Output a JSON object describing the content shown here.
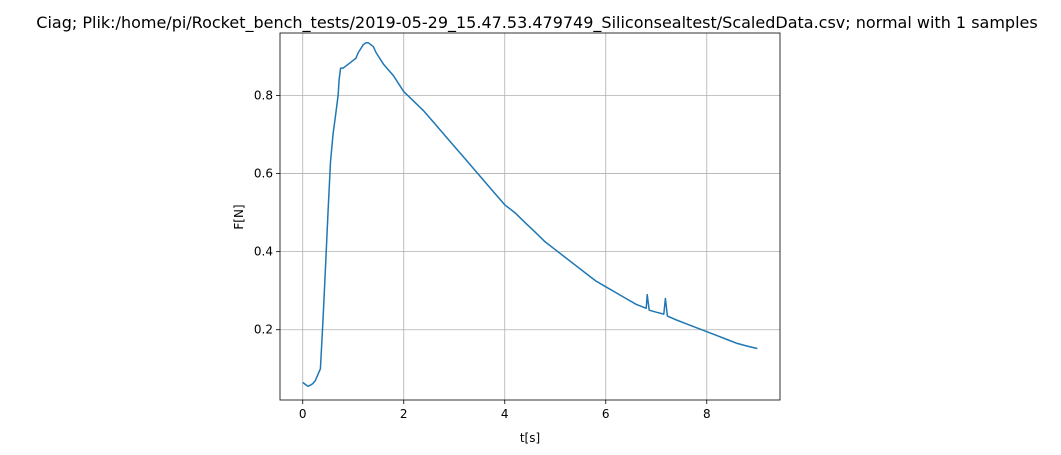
{
  "chart_data": {
    "type": "line",
    "title": "Ciag; Plik:/home/pi/Rocket_bench_tests/2019-05-29_15.47.53.479749_Siliconsealtest/ScaledData.csv; normal with 1 samples",
    "xlabel": "t[s]",
    "ylabel": "F[N]",
    "xlim": [
      -0.45,
      9.45
    ],
    "ylim": [
      0.02,
      0.96
    ],
    "x_ticks": [
      0,
      2,
      4,
      6,
      8
    ],
    "y_ticks": [
      0.2,
      0.4,
      0.6,
      0.8
    ],
    "x_tick_labels": [
      "0",
      "2",
      "4",
      "6",
      "8"
    ],
    "y_tick_labels": [
      "0.2",
      "0.4",
      "0.6",
      "0.8"
    ],
    "grid": true,
    "line_color": "#1f77b4",
    "series": [
      {
        "x": [
          0,
          0.05,
          0.1,
          0.15,
          0.2,
          0.25,
          0.3,
          0.35,
          0.4,
          0.45,
          0.5,
          0.55,
          0.6,
          0.65,
          0.7,
          0.72,
          0.75,
          0.8,
          0.85,
          0.9,
          0.95,
          1.0,
          1.05,
          1.1,
          1.15,
          1.2,
          1.25,
          1.3,
          1.35,
          1.4,
          1.45,
          1.5,
          1.55,
          1.6,
          1.7,
          1.8,
          1.9,
          2.0,
          2.2,
          2.4,
          2.6,
          2.8,
          3.0,
          3.2,
          3.4,
          3.6,
          3.8,
          4.0,
          4.2,
          4.4,
          4.6,
          4.8,
          5.0,
          5.2,
          5.4,
          5.6,
          5.8,
          6.0,
          6.2,
          6.4,
          6.6,
          6.8,
          6.82,
          6.86,
          7.0,
          7.15,
          7.18,
          7.22,
          7.4,
          7.6,
          7.8,
          8.0,
          8.2,
          8.4,
          8.6,
          8.8,
          9.0
        ],
        "y": [
          0.065,
          0.06,
          0.055,
          0.058,
          0.062,
          0.07,
          0.085,
          0.1,
          0.22,
          0.36,
          0.5,
          0.63,
          0.7,
          0.75,
          0.8,
          0.84,
          0.87,
          0.87,
          0.875,
          0.88,
          0.885,
          0.89,
          0.895,
          0.91,
          0.92,
          0.93,
          0.935,
          0.935,
          0.93,
          0.925,
          0.91,
          0.9,
          0.89,
          0.88,
          0.865,
          0.85,
          0.83,
          0.81,
          0.785,
          0.76,
          0.73,
          0.7,
          0.67,
          0.64,
          0.61,
          0.58,
          0.55,
          0.52,
          0.5,
          0.475,
          0.45,
          0.425,
          0.405,
          0.385,
          0.365,
          0.345,
          0.325,
          0.31,
          0.295,
          0.28,
          0.265,
          0.255,
          0.29,
          0.25,
          0.245,
          0.24,
          0.28,
          0.235,
          0.225,
          0.215,
          0.205,
          0.195,
          0.185,
          0.175,
          0.165,
          0.158,
          0.152
        ]
      }
    ]
  }
}
